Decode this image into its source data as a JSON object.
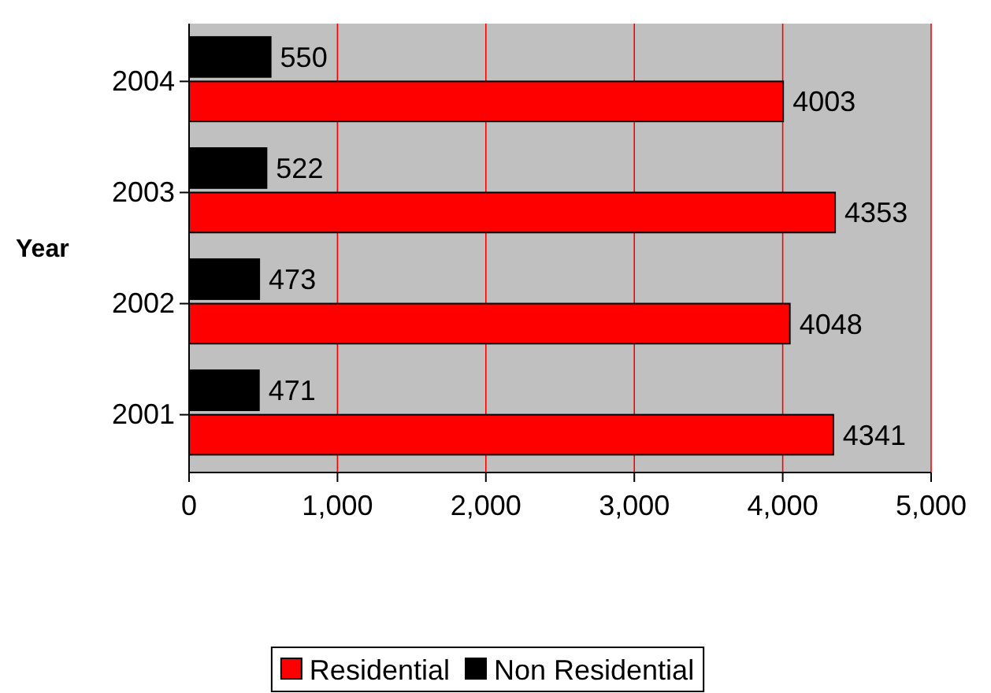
{
  "chart_data": {
    "type": "bar",
    "orientation": "horizontal",
    "ylabel": "Year",
    "categories": [
      "2004",
      "2003",
      "2002",
      "2001"
    ],
    "series": [
      {
        "name": "Residential",
        "color": "#ff0000",
        "values": [
          4003,
          4353,
          4048,
          4341
        ]
      },
      {
        "name": "Non Residential",
        "color": "#000000",
        "values": [
          550,
          522,
          473,
          471
        ]
      }
    ],
    "xlim": [
      0,
      5000
    ],
    "xticks": [
      0,
      {
        "value": 1000,
        "label": "1,000"
      },
      {
        "value": 2000,
        "label": "2,000"
      },
      {
        "value": 3000,
        "label": "3,000"
      },
      {
        "value": 4000,
        "label": "4,000"
      },
      {
        "value": 5000,
        "label": "5,000"
      }
    ],
    "grid": "x",
    "legend": "bottom",
    "data_labels": true
  }
}
